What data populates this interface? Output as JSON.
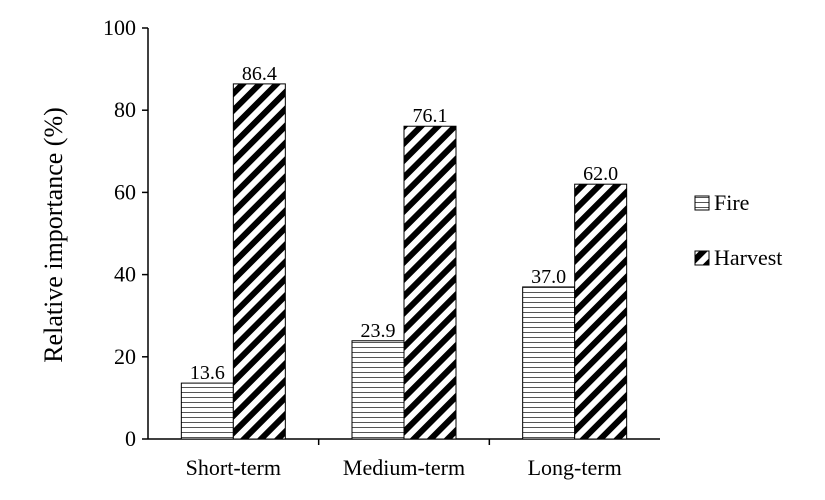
{
  "chart_data": {
    "type": "bar",
    "title": "",
    "xlabel": "",
    "ylabel": "Relative importance (%)",
    "ylim": [
      0,
      100
    ],
    "yticks": [
      "0",
      "20",
      "40",
      "60",
      "80",
      "100"
    ],
    "categories": [
      "Short-term",
      "Medium-term",
      "Long-term"
    ],
    "series": [
      {
        "name": "Fire",
        "values": [
          13.6,
          23.9,
          37.0
        ],
        "labels": [
          "13.6",
          "23.9",
          "37.0"
        ],
        "pattern": "horizontal-lines"
      },
      {
        "name": "Harvest",
        "values": [
          86.4,
          76.1,
          62.0
        ],
        "labels": [
          "86.4",
          "76.1",
          "62.0"
        ],
        "pattern": "diagonal-hatch"
      }
    ],
    "legend_position": "right",
    "grid": false,
    "colors": {
      "stroke": "#000000",
      "background": "#ffffff"
    }
  }
}
